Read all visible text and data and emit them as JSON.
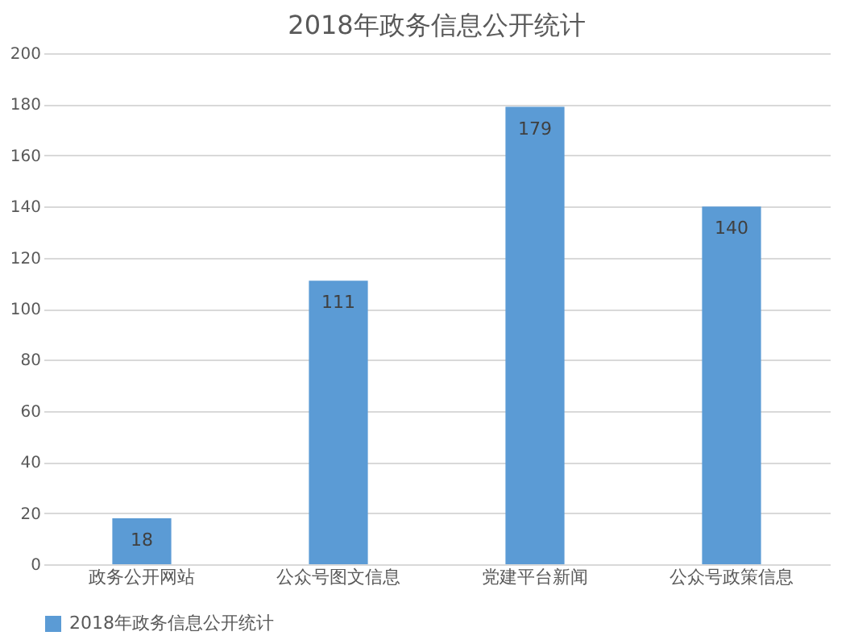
{
  "chart_data": {
    "type": "bar",
    "title": "2018年政务信息公开统计",
    "categories": [
      "政务公开网站",
      "公众号图文信息",
      "党建平台新闻",
      "公众号政策信息"
    ],
    "series": [
      {
        "name": "2018年政务信息公开统计",
        "color": "#5b9bd5",
        "values": [
          18,
          111,
          179,
          140
        ]
      }
    ],
    "ylim": [
      0,
      200
    ],
    "yticks": [
      0,
      20,
      40,
      60,
      80,
      100,
      120,
      140,
      160,
      180,
      200
    ],
    "grid": "y",
    "legend": "bottom",
    "data_labels": true
  }
}
